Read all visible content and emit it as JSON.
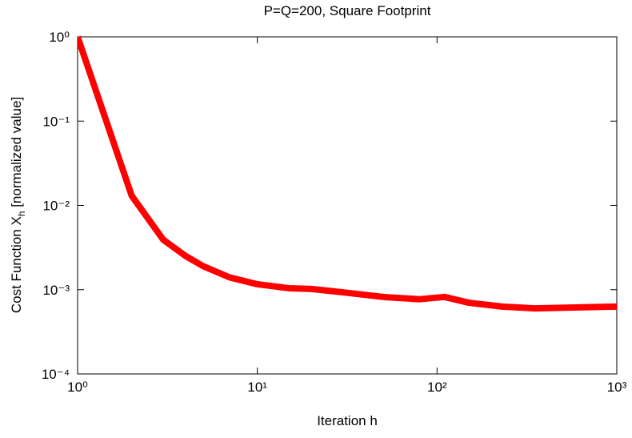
{
  "chart_data": {
    "type": "line",
    "title": "P=Q=200, Square Footprint",
    "x_label": "Iteration h",
    "y_label": {
      "text": "Cost Function X",
      "subscript": "h",
      "suffix": " [normalized value]"
    },
    "x_log": true,
    "y_log": true,
    "xlim": [
      1,
      1000
    ],
    "ylim": [
      0.0001,
      1
    ],
    "xticks": [
      {
        "value": 1,
        "label": "10⁰"
      },
      {
        "value": 10,
        "label": "10¹"
      },
      {
        "value": 100,
        "label": "10²"
      },
      {
        "value": 1000,
        "label": "10³"
      }
    ],
    "yticks": [
      {
        "value": 0.0001,
        "label": "10⁻⁴"
      },
      {
        "value": 0.001,
        "label": "10⁻³"
      },
      {
        "value": 0.01,
        "label": "10⁻²"
      },
      {
        "value": 0.1,
        "label": "10⁻¹"
      },
      {
        "value": 1,
        "label": "10⁰"
      }
    ],
    "x": [
      1,
      2,
      3,
      4,
      5,
      7,
      10,
      15,
      20,
      30,
      50,
      80,
      110,
      150,
      230,
      350,
      1000
    ],
    "series": [
      {
        "color": "#ff0000",
        "values": [
          1,
          0.013,
          0.0039,
          0.0025,
          0.0019,
          0.0014,
          0.00116,
          0.00104,
          0.00102,
          0.00093,
          0.00082,
          0.00077,
          0.00082,
          0.0007,
          0.00063,
          0.0006,
          0.00063
        ]
      }
    ]
  }
}
